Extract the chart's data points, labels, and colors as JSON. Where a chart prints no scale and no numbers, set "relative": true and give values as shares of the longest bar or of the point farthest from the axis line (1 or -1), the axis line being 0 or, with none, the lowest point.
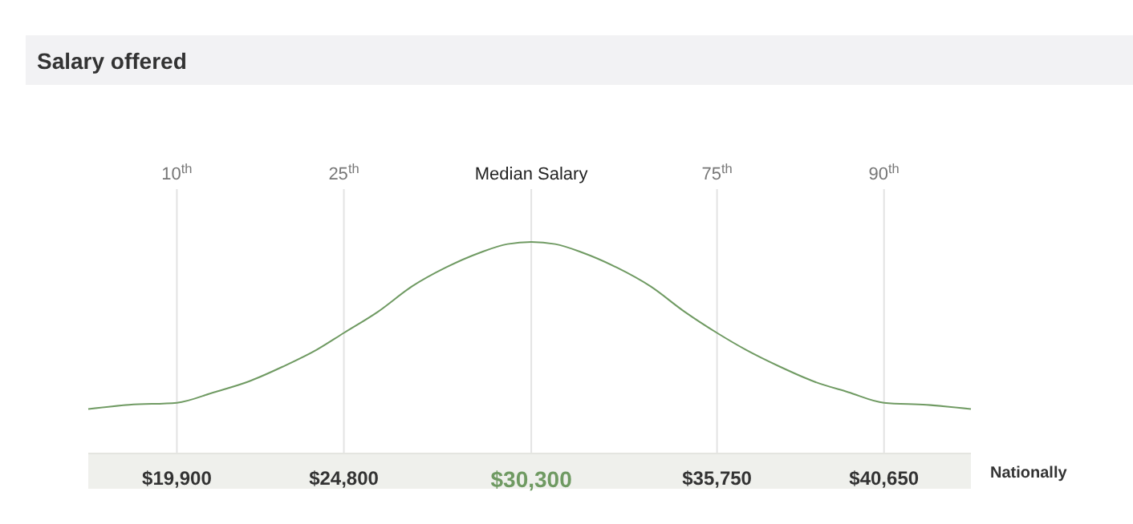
{
  "chart_data": {
    "type": "line",
    "title": "Salary offered",
    "relative": true,
    "tick_labels": "x",
    "marker": "none",
    "line_style": "solid",
    "x": [
      17300,
      18500,
      19900,
      21000,
      22000,
      23000,
      24000,
      24800,
      25800,
      26800,
      27800,
      28800,
      29600,
      30300,
      31000,
      31800,
      32800,
      33800,
      34800,
      35750,
      36600,
      37600,
      38600,
      39600,
      40650,
      41900,
      43200
    ],
    "series": [
      {
        "color": "#6f9a62",
        "values": [
          0.21,
          0.23,
          0.24,
          0.29,
          0.34,
          0.41,
          0.49,
          0.57,
          0.67,
          0.79,
          0.88,
          0.95,
          0.99,
          1,
          0.99,
          0.95,
          0.88,
          0.79,
          0.67,
          0.57,
          0.49,
          0.41,
          0.34,
          0.29,
          0.24,
          0.23,
          0.21
        ]
      }
    ],
    "xlim": [
      17300,
      43200
    ],
    "xticks": [
      {
        "value": 19900,
        "label": "$19,900"
      },
      {
        "value": 24800,
        "label": "$24,800"
      },
      {
        "value": 30300,
        "label": "$30,300"
      },
      {
        "value": 35750,
        "label": "$35,750"
      },
      {
        "value": 40650,
        "label": "$40,650"
      }
    ],
    "ref_lines": [
      {
        "axis": "x",
        "value": 19900,
        "label": "10$^{th}$"
      },
      {
        "axis": "x",
        "value": 24800,
        "label": "25$^{th}$"
      },
      {
        "axis": "x",
        "value": 30300,
        "label": "Median Salary"
      },
      {
        "axis": "x",
        "value": 35750,
        "label": "75$^{th}$"
      },
      {
        "axis": "x",
        "value": 40650,
        "label": "90$^{th}$"
      }
    ],
    "annotations": [
      "Nationally"
    ]
  }
}
